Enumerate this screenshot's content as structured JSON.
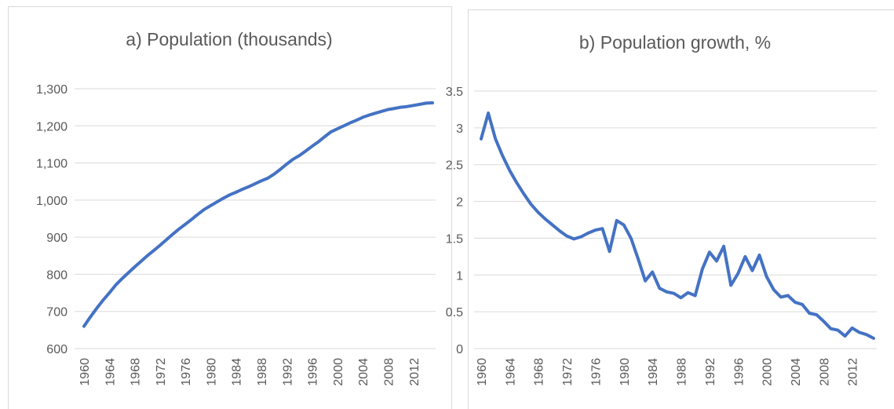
{
  "chart_data": [
    {
      "type": "line",
      "title": "a) Population (thousands)",
      "categories": [
        "1960",
        null,
        null,
        null,
        "1964",
        null,
        null,
        null,
        "1968",
        null,
        null,
        null,
        "1972",
        null,
        null,
        null,
        "1976",
        null,
        null,
        null,
        "1980",
        null,
        null,
        null,
        "1984",
        null,
        null,
        null,
        "1988",
        null,
        null,
        null,
        "1992",
        null,
        null,
        null,
        "1996",
        null,
        null,
        null,
        "2000",
        null,
        null,
        null,
        "2004",
        null,
        null,
        null,
        "2008",
        null,
        null,
        null,
        "2012",
        null,
        null,
        null
      ],
      "values": [
        660,
        685,
        708,
        730,
        750,
        771,
        788,
        804,
        820,
        835,
        850,
        864,
        878,
        893,
        908,
        922,
        935,
        948,
        962,
        975,
        985,
        995,
        1005,
        1014,
        1021,
        1029,
        1036,
        1044,
        1052,
        1059,
        1070,
        1083,
        1097,
        1110,
        1120,
        1132,
        1145,
        1157,
        1171,
        1184,
        1192,
        1200,
        1208,
        1215,
        1223,
        1229,
        1234,
        1239,
        1244,
        1247,
        1250,
        1252,
        1255,
        1258,
        1261,
        1262
      ],
      "color": "#4472c4",
      "ylim": [
        600,
        1300
      ],
      "yticks": [
        600,
        700,
        800,
        900,
        {
          "value": 1000,
          "label": "1,000"
        },
        {
          "value": 1100,
          "label": "1,100"
        },
        {
          "value": 1200,
          "label": "1,200"
        },
        {
          "value": 1300,
          "label": "1,300"
        }
      ],
      "grid": true
    },
    {
      "type": "line",
      "title": "b) Population growth, %",
      "categories": [
        "1960",
        null,
        null,
        null,
        "1964",
        null,
        null,
        null,
        "1968",
        null,
        null,
        null,
        "1972",
        null,
        null,
        null,
        "1976",
        null,
        null,
        null,
        "1980",
        null,
        null,
        null,
        "1984",
        null,
        null,
        null,
        "1988",
        null,
        null,
        null,
        "1992",
        null,
        null,
        null,
        "1996",
        null,
        null,
        null,
        "2000",
        null,
        null,
        null,
        "2004",
        null,
        null,
        null,
        "2008",
        null,
        null,
        null,
        "2012",
        null,
        null,
        null
      ],
      "values": [
        2.85,
        3.2,
        2.85,
        2.62,
        2.42,
        2.25,
        2.1,
        1.96,
        1.85,
        1.76,
        1.68,
        1.6,
        1.53,
        1.49,
        1.52,
        1.57,
        1.61,
        1.63,
        1.32,
        1.74,
        1.68,
        1.5,
        1.22,
        0.92,
        1.04,
        0.82,
        0.77,
        0.75,
        0.69,
        0.76,
        0.72,
        1.08,
        1.31,
        1.19,
        1.39,
        0.86,
        1.02,
        1.25,
        1.06,
        1.27,
        0.98,
        0.8,
        0.7,
        0.72,
        0.63,
        0.6,
        0.48,
        0.46,
        0.37,
        0.27,
        0.25,
        0.17,
        0.28,
        0.22,
        0.19,
        0.14
      ],
      "color": "#4472c4",
      "ylim": [
        0,
        3.5
      ],
      "yticks": [
        0,
        0.5,
        1,
        1.5,
        2,
        2.5,
        3,
        3.5
      ],
      "grid": true
    }
  ]
}
